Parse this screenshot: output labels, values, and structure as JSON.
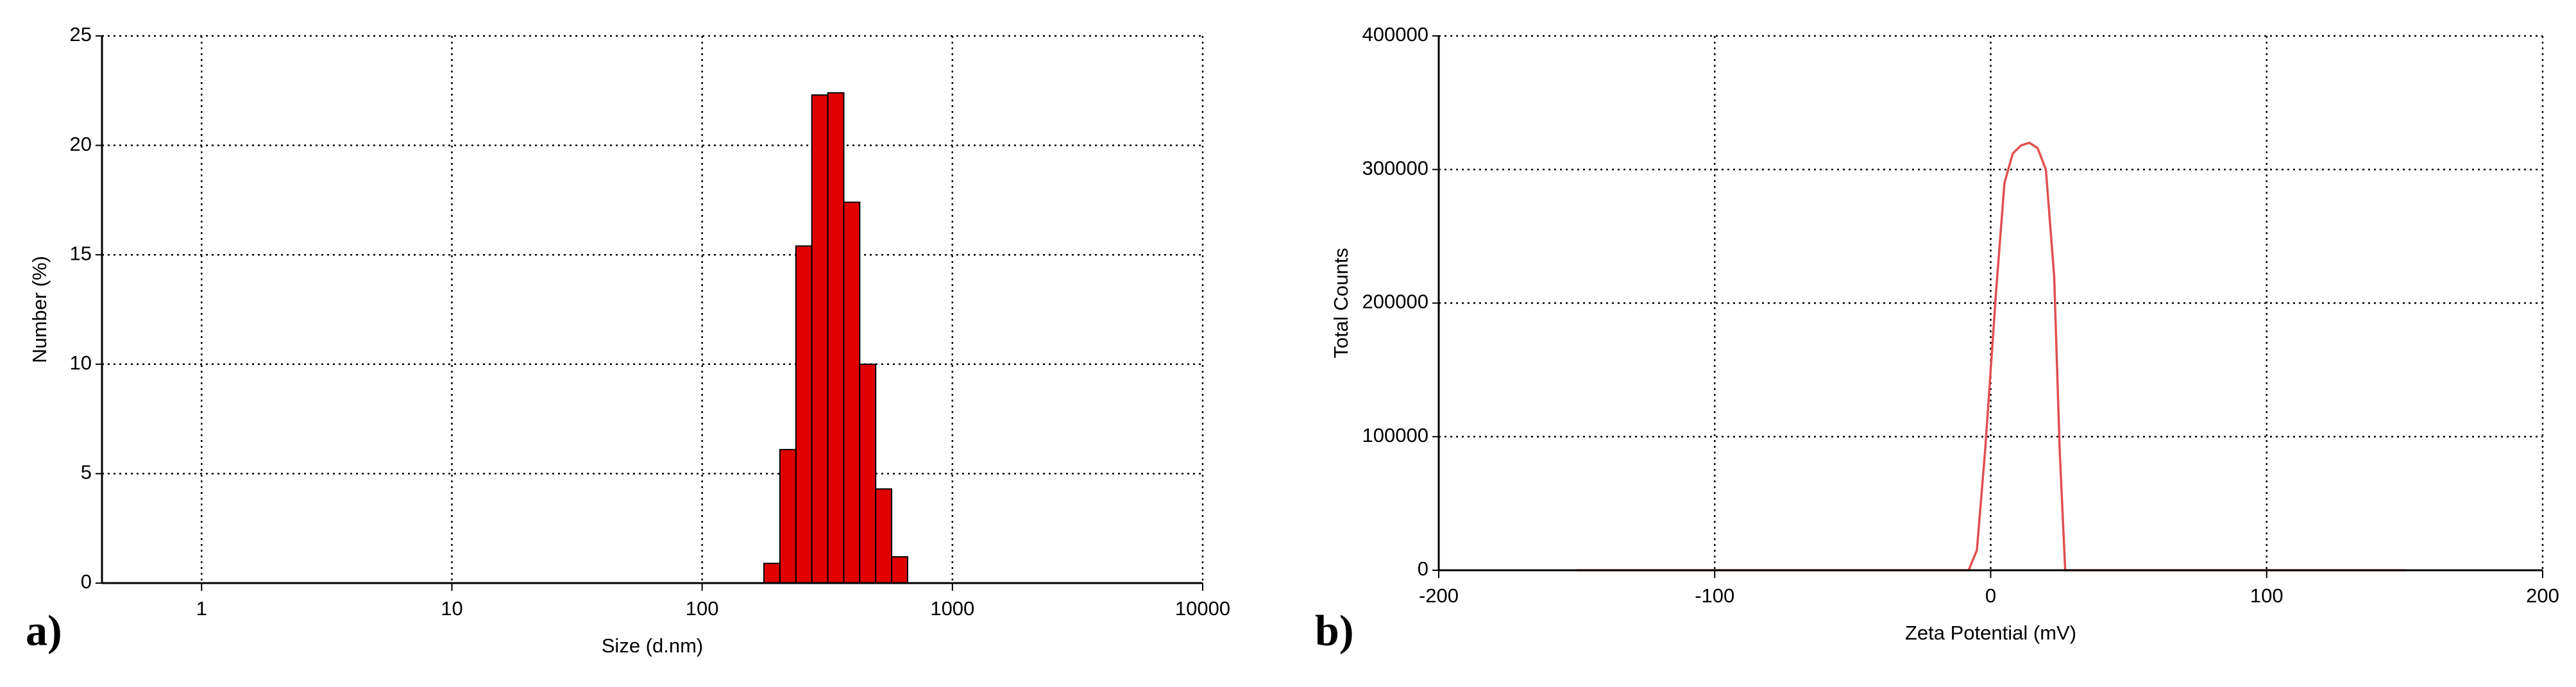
{
  "chart_data": [
    {
      "type": "histogram",
      "panel_label": "a)",
      "xlabel": "Size (d.nm)",
      "ylabel": "Number (%)",
      "xscale": "log",
      "xlim": [
        0.4,
        10000
      ],
      "xticks": [
        1,
        10,
        100,
        1000,
        10000
      ],
      "ylim": [
        0,
        25
      ],
      "yticks": [
        0,
        5,
        10,
        15,
        20,
        25
      ],
      "grid": true,
      "color": "#e00000",
      "bins": [
        176.6,
        204.5,
        237.0,
        274.4,
        317.8,
        368.1,
        426.2,
        493.6,
        571.6,
        662.0
      ],
      "values": [
        0.9,
        6.1,
        15.4,
        22.3,
        22.4,
        17.4,
        10.0,
        4.3,
        1.2
      ]
    },
    {
      "type": "line",
      "panel_label": "b)",
      "xlabel": "Zeta Potential (mV)",
      "ylabel": "Total Counts",
      "xscale": "linear",
      "xlim": [
        -200,
        200
      ],
      "xticks": [
        -200,
        -100,
        0,
        100,
        200
      ],
      "ylim": [
        0,
        400000
      ],
      "yticks": [
        0,
        100000,
        200000,
        300000,
        400000
      ],
      "grid": true,
      "color": "#e05050",
      "x": [
        -150,
        -8,
        -5,
        -2,
        0,
        2,
        5,
        8,
        11,
        14,
        17,
        20,
        23,
        25,
        27,
        150
      ],
      "values": [
        0,
        0,
        15000,
        90000,
        150000,
        210000,
        290000,
        312000,
        318000,
        320000,
        316000,
        300000,
        220000,
        90000,
        0,
        0
      ]
    }
  ]
}
